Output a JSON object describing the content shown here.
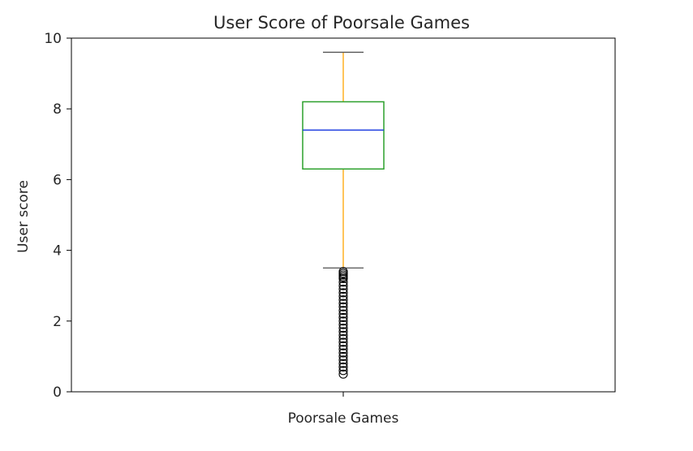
{
  "chart_data": {
    "type": "box",
    "title": "User Score of Poorsale Games",
    "xlabel": "",
    "ylabel": "User score",
    "ylim": [
      0,
      10
    ],
    "yticks": [
      0,
      2,
      4,
      6,
      8,
      10
    ],
    "categories": [
      "Poorsale Games"
    ],
    "grid": false,
    "box": {
      "q1": 6.3,
      "median": 7.4,
      "q3": 8.2,
      "whisker_low": 3.5,
      "whisker_high": 9.6
    },
    "outliers": [
      3.4,
      3.35,
      3.3,
      3.25,
      3.2,
      3.1,
      3.0,
      2.9,
      2.8,
      2.7,
      2.6,
      2.5,
      2.4,
      2.3,
      2.2,
      2.1,
      2.0,
      1.9,
      1.8,
      1.7,
      1.6,
      1.5,
      1.4,
      1.3,
      1.2,
      1.1,
      1.0,
      0.9,
      0.8,
      0.7,
      0.6,
      0.5
    ],
    "colors": {
      "box": "#2ca02c",
      "median": "#1f3fe0",
      "whisker": "#ffa500",
      "cap": "#555555",
      "outlier": "#000000"
    }
  }
}
